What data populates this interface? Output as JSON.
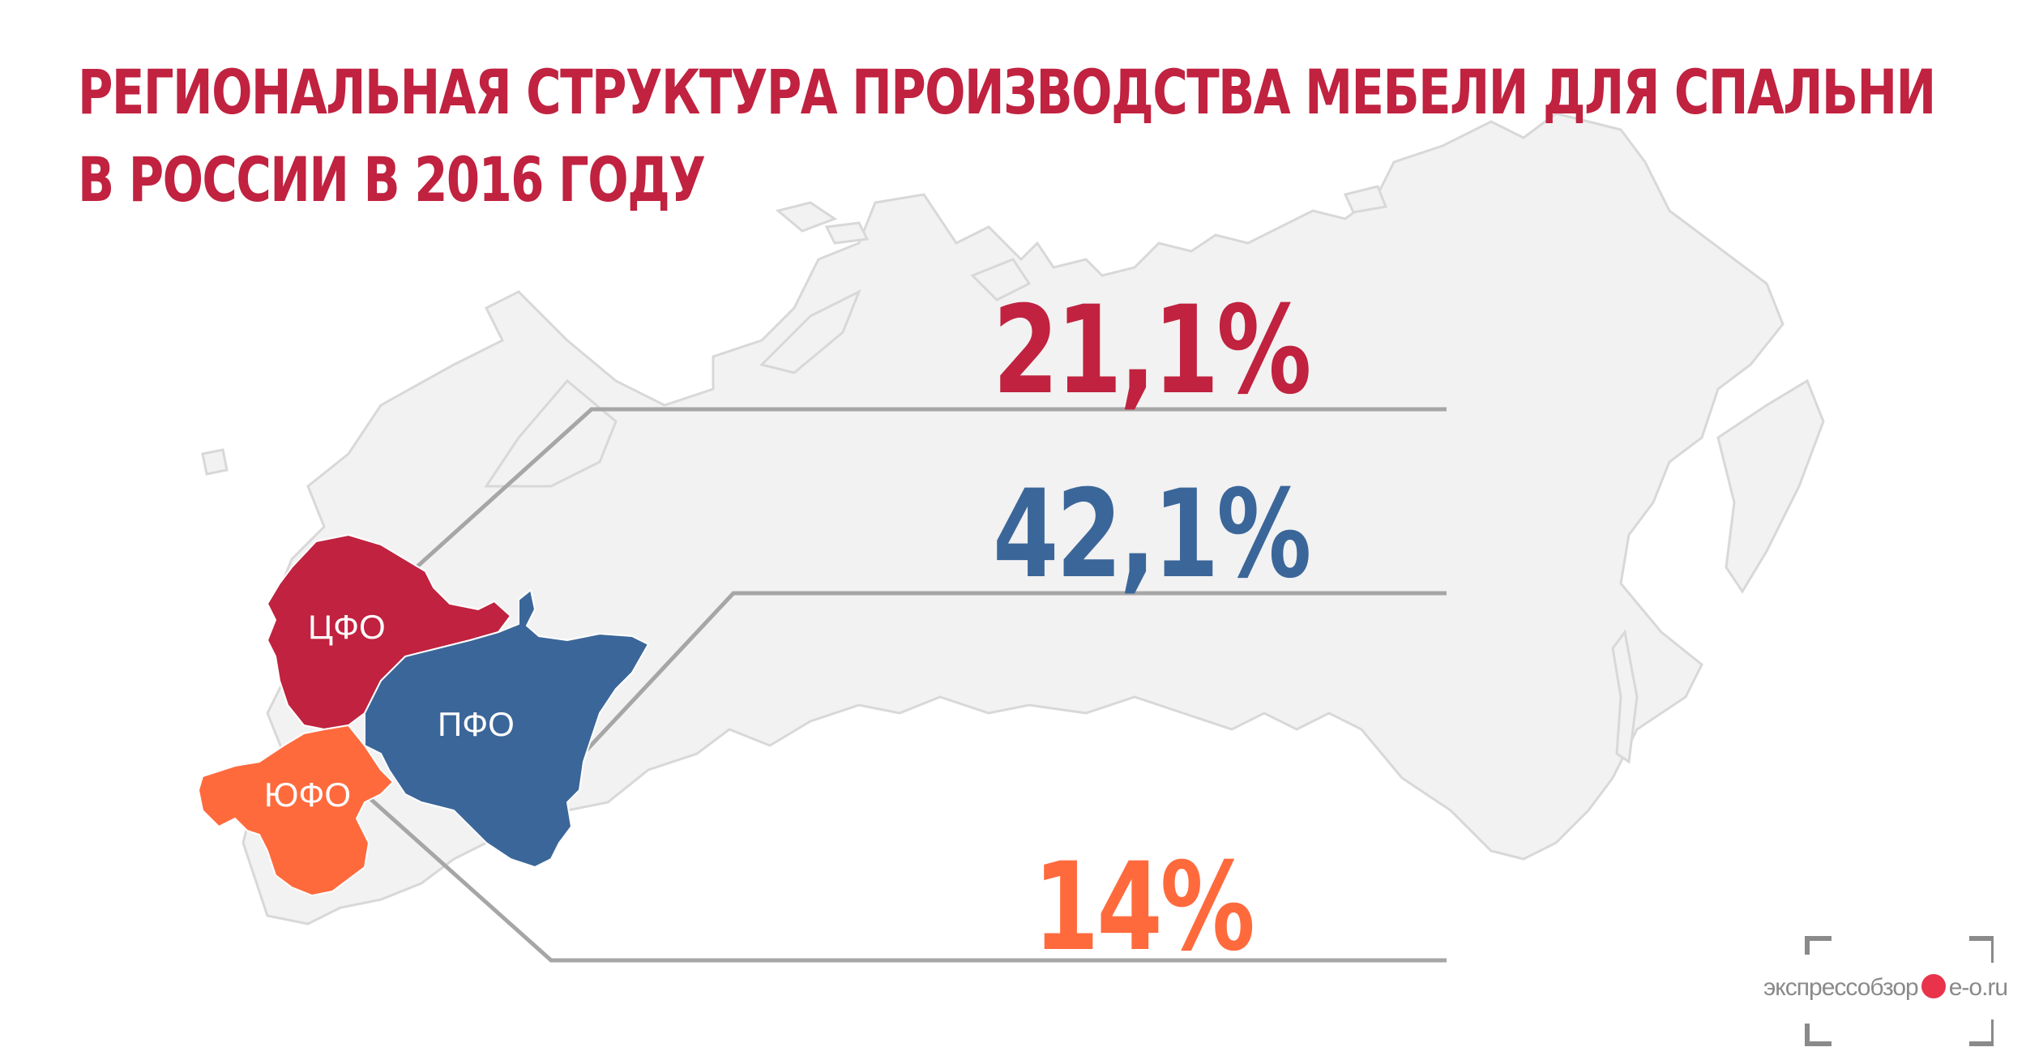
{
  "title": {
    "line1": "РЕГИОНАЛЬНАЯ СТРУКТУРА ПРОИЗВОДСТВА МЕБЕЛИ ДЛЯ СПАЛЬНИ",
    "line2": "В РОССИИ В 2016 ГОДУ"
  },
  "regions": [
    {
      "code": "cfo",
      "label": "ЦФО",
      "value": "21,1%",
      "color": "#c0223f"
    },
    {
      "code": "pfo",
      "label": "ПФО",
      "value": "42,1%",
      "color": "#3b6699"
    },
    {
      "code": "yufo",
      "label": "ЮФО",
      "value": "14%",
      "color": "#ff6a3d"
    }
  ],
  "colors": {
    "map_fill": "#f2f2f2",
    "map_stroke": "#d8d8d8",
    "leader_line": "#a6a6a6",
    "title": "#c0223f"
  },
  "watermark": {
    "text_before": "экспресс",
    "text_mid": "обзор",
    "text_after": "е-о.ru",
    "dot_color": "#e8334a"
  }
}
